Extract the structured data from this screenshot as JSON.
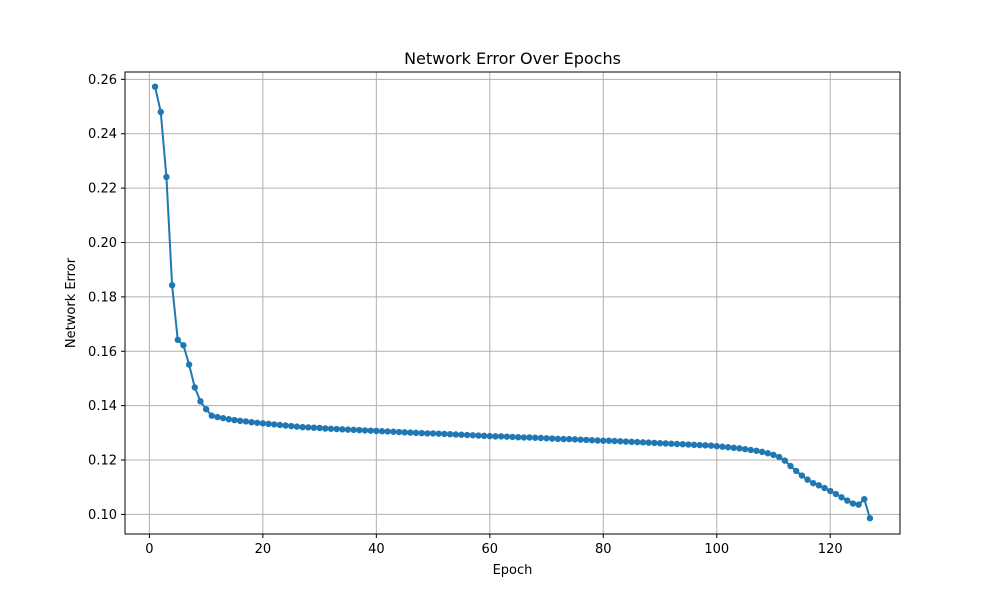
{
  "chart_data": {
    "type": "line",
    "title": "Network Error Over Epochs",
    "xlabel": "Epoch",
    "ylabel": "Network Error",
    "xlim": [
      -4.3,
      132.3
    ],
    "ylim": [
      0.0928,
      0.2627
    ],
    "xticks": [
      0,
      20,
      40,
      60,
      80,
      100,
      120
    ],
    "yticks": [
      0.1,
      0.12,
      0.14,
      0.16,
      0.18,
      0.2,
      0.22,
      0.24,
      0.26
    ],
    "grid": true,
    "marker": "circle",
    "color": "#1f77b4",
    "series": [
      {
        "x": [
          1,
          2,
          3,
          4,
          5,
          6,
          7,
          8,
          9,
          10,
          11,
          12,
          13,
          14,
          15,
          16,
          17,
          18,
          19,
          20,
          21,
          22,
          23,
          24,
          25,
          26,
          27,
          28,
          29,
          30,
          31,
          32,
          33,
          34,
          35,
          36,
          37,
          38,
          39,
          40,
          41,
          42,
          43,
          44,
          45,
          46,
          47,
          48,
          49,
          50,
          51,
          52,
          53,
          54,
          55,
          56,
          57,
          58,
          59,
          60,
          61,
          62,
          63,
          64,
          65,
          66,
          67,
          68,
          69,
          70,
          71,
          72,
          73,
          74,
          75,
          76,
          77,
          78,
          79,
          80,
          81,
          82,
          83,
          84,
          85,
          86,
          87,
          88,
          89,
          90,
          91,
          92,
          93,
          94,
          95,
          96,
          97,
          98,
          99,
          100,
          101,
          102,
          103,
          104,
          105,
          106,
          107,
          108,
          109,
          110,
          111,
          112,
          113,
          114,
          115,
          116,
          117,
          118,
          119,
          120,
          121,
          122,
          123,
          124,
          125,
          126,
          127
        ],
        "values": [
          0.2573,
          0.248,
          0.2241,
          0.1843,
          0.1642,
          0.1622,
          0.1551,
          0.1467,
          0.1416,
          0.1387,
          0.1363,
          0.1358,
          0.1354,
          0.135,
          0.1347,
          0.1344,
          0.1342,
          0.1339,
          0.1337,
          0.1335,
          0.1333,
          0.1331,
          0.1329,
          0.1327,
          0.1325,
          0.1323,
          0.1321,
          0.132,
          0.1319,
          0.1318,
          0.1316,
          0.1315,
          0.1314,
          0.1313,
          0.1312,
          0.1311,
          0.131,
          0.1309,
          0.1308,
          0.1307,
          0.1306,
          0.1305,
          0.1304,
          0.1303,
          0.1302,
          0.1301,
          0.13,
          0.1299,
          0.1298,
          0.1298,
          0.1297,
          0.1296,
          0.1295,
          0.1294,
          0.1293,
          0.1292,
          0.1291,
          0.129,
          0.1289,
          0.1288,
          0.1287,
          0.1287,
          0.1286,
          0.1285,
          0.1284,
          0.1283,
          0.1283,
          0.1282,
          0.1281,
          0.128,
          0.1279,
          0.1278,
          0.1277,
          0.1277,
          0.1276,
          0.1275,
          0.1274,
          0.1273,
          0.1272,
          0.1271,
          0.1271,
          0.127,
          0.1269,
          0.1268,
          0.1267,
          0.1266,
          0.1265,
          0.1264,
          0.1263,
          0.1262,
          0.1261,
          0.126,
          0.1259,
          0.1258,
          0.1257,
          0.1256,
          0.1255,
          0.1254,
          0.1253,
          0.1251,
          0.1249,
          0.1247,
          0.1245,
          0.1243,
          0.124,
          0.1237,
          0.1234,
          0.123,
          0.1225,
          0.1219,
          0.1211,
          0.1198,
          0.1178,
          0.116,
          0.1143,
          0.1128,
          0.1115,
          0.1107,
          0.1097,
          0.1086,
          0.1075,
          0.1063,
          0.1051,
          0.104,
          0.1036,
          0.1056,
          0.0986
        ]
      }
    ]
  }
}
